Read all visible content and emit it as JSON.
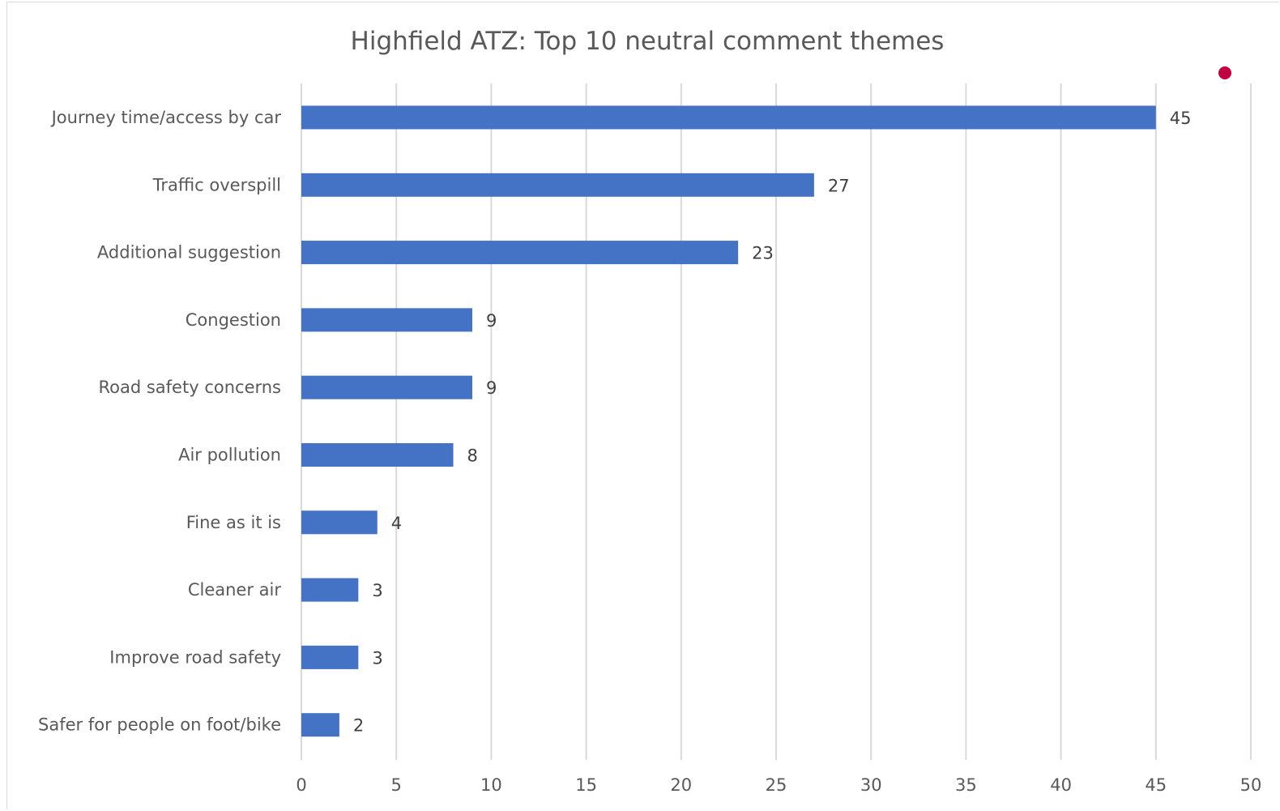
{
  "colors": {
    "bar": "#4472c4",
    "marker": "#c00040"
  },
  "chart_data": {
    "type": "bar",
    "orientation": "horizontal",
    "title": "Highfield ATZ: Top 10 neutral comment themes",
    "categories": [
      "Journey time/access by car",
      "Traffic overspill",
      "Additional suggestion",
      "Congestion",
      "Road safety concerns",
      "Air pollution",
      "Fine as it is",
      "Cleaner air",
      "Improve road safety",
      "Safer for people on foot/bike"
    ],
    "values": [
      45,
      27,
      23,
      9,
      9,
      8,
      4,
      3,
      3,
      2
    ],
    "xlim": [
      0,
      50
    ],
    "x_ticks": [
      0,
      5,
      10,
      15,
      20,
      25,
      30,
      35,
      40,
      45,
      50
    ],
    "grid": true,
    "data_labels": true,
    "legend": "none"
  }
}
